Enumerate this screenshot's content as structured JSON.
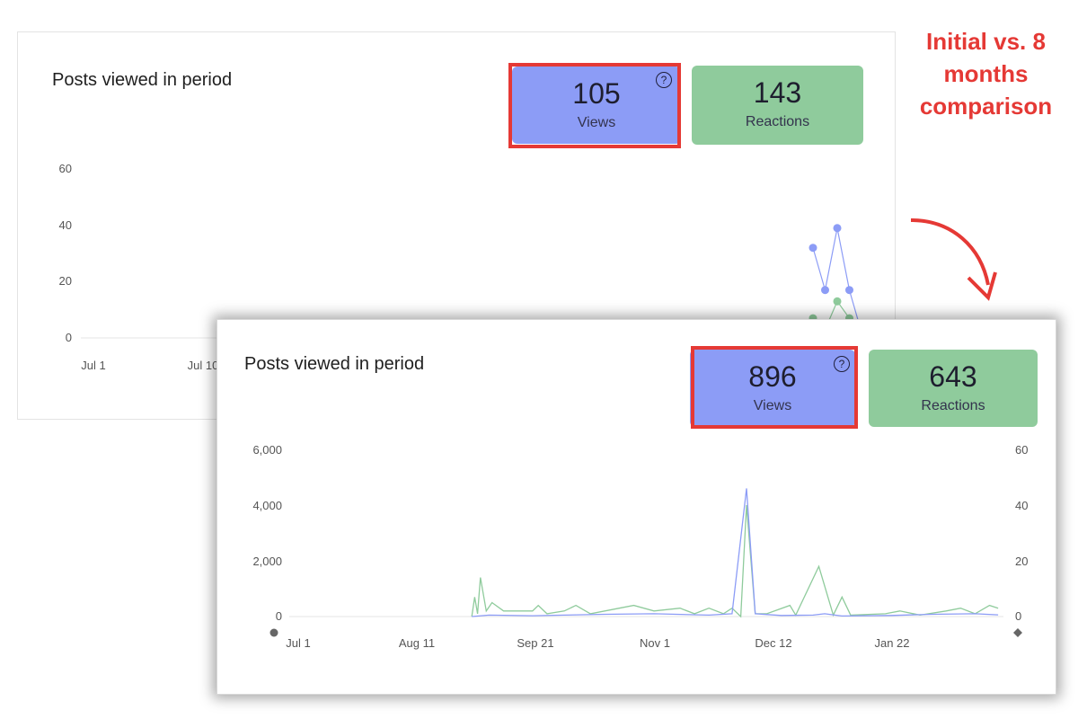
{
  "annotation": {
    "text": "Initial vs. 8 months comparison",
    "color": "#e53935"
  },
  "colors": {
    "views": "#8c9cf6",
    "reactions": "#8fcb9c",
    "highlight": "#e53935"
  },
  "panels": [
    {
      "title": "Posts viewed in period",
      "views": {
        "value": "105",
        "label": "Views",
        "help": "?"
      },
      "reactions": {
        "value": "143",
        "label": "Reactions"
      },
      "x_ticks": [
        "Jul 1",
        "Jul 10"
      ],
      "y_ticks": [
        "60",
        "40",
        "20",
        "0"
      ]
    },
    {
      "title": "Posts viewed in period",
      "views": {
        "value": "896",
        "label": "Views",
        "help": "?"
      },
      "reactions": {
        "value": "643",
        "label": "Reactions"
      },
      "x_ticks": [
        "Jul 1",
        "Aug 11",
        "Sep 21",
        "Nov 1",
        "Dec 12",
        "Jan 22"
      ],
      "y_left_ticks": [
        "6,000",
        "4,000",
        "2,000",
        "0"
      ],
      "y_right_ticks": [
        "60",
        "40",
        "20",
        "0"
      ]
    }
  ],
  "chart_data": [
    {
      "type": "line",
      "title": "Posts viewed in period",
      "ylim": [
        0,
        60
      ],
      "series": [
        {
          "name": "Views",
          "points": [
            [
              0,
              32
            ],
            [
              1,
              17
            ],
            [
              2,
              39
            ],
            [
              3,
              17
            ],
            [
              4,
              2
            ]
          ]
        },
        {
          "name": "Reactions",
          "points": [
            [
              0,
              7
            ],
            [
              1,
              3
            ],
            [
              2,
              13
            ],
            [
              3,
              7
            ]
          ]
        }
      ]
    },
    {
      "type": "line",
      "title": "Posts viewed in period",
      "x_range": [
        "Jul 1",
        "Feb 28"
      ],
      "ylim_left": [
        0,
        6000
      ],
      "ylim_right": [
        0,
        60
      ],
      "series": [
        {
          "name": "Views",
          "axis": "right",
          "points": [
            [
              "Aug 30",
              0
            ],
            [
              "Sep 5",
              0.5
            ],
            [
              "Sep 20",
              0.3
            ],
            [
              "Oct 1",
              0.5
            ],
            [
              "Oct 15",
              0.8
            ],
            [
              "Nov 1",
              1
            ],
            [
              "Nov 20",
              0.5
            ],
            [
              "Nov 28",
              1
            ],
            [
              "Dec 3",
              46
            ],
            [
              "Dec 6",
              1
            ],
            [
              "Dec 15",
              0.4
            ],
            [
              "Dec 26",
              0.5
            ],
            [
              "Dec 30",
              1
            ],
            [
              "Jan 5",
              0.2
            ],
            [
              "Jan 22",
              0.4
            ],
            [
              "Feb 5",
              0.8
            ],
            [
              "Feb 20",
              1
            ],
            [
              "Feb 28",
              0.6
            ]
          ]
        },
        {
          "name": "Reactions",
          "axis": "right",
          "points": [
            [
              "Aug 30",
              0
            ],
            [
              "Aug 31",
              7
            ],
            [
              "Sep 1",
              1
            ],
            [
              "Sep 2",
              14
            ],
            [
              "Sep 4",
              2
            ],
            [
              "Sep 6",
              5
            ],
            [
              "Sep 10",
              2
            ],
            [
              "Sep 20",
              2
            ],
            [
              "Sep 22",
              4
            ],
            [
              "Sep 25",
              1
            ],
            [
              "Oct 1",
              2
            ],
            [
              "Oct 5",
              4
            ],
            [
              "Oct 10",
              1
            ],
            [
              "Oct 20",
              3
            ],
            [
              "Oct 25",
              4
            ],
            [
              "Nov 1",
              2
            ],
            [
              "Nov 10",
              3
            ],
            [
              "Nov 15",
              1
            ],
            [
              "Nov 20",
              3
            ],
            [
              "Nov 25",
              1
            ],
            [
              "Nov 28",
              3
            ],
            [
              "Dec 1",
              0
            ],
            [
              "Dec 3",
              40
            ],
            [
              "Dec 6",
              1
            ],
            [
              "Dec 10",
              1
            ],
            [
              "Dec 18",
              4
            ],
            [
              "Dec 20",
              0.5
            ],
            [
              "Dec 28",
              18
            ],
            [
              "Jan 2",
              0.5
            ],
            [
              "Jan 5",
              7
            ],
            [
              "Jan 8",
              0.5
            ],
            [
              "Jan 20",
              1
            ],
            [
              "Jan 25",
              2
            ],
            [
              "Feb 1",
              0.5
            ],
            [
              "Feb 10",
              2
            ],
            [
              "Feb 15",
              3
            ],
            [
              "Feb 20",
              1
            ],
            [
              "Feb 25",
              4
            ],
            [
              "Feb 28",
              3
            ]
          ]
        }
      ]
    }
  ]
}
